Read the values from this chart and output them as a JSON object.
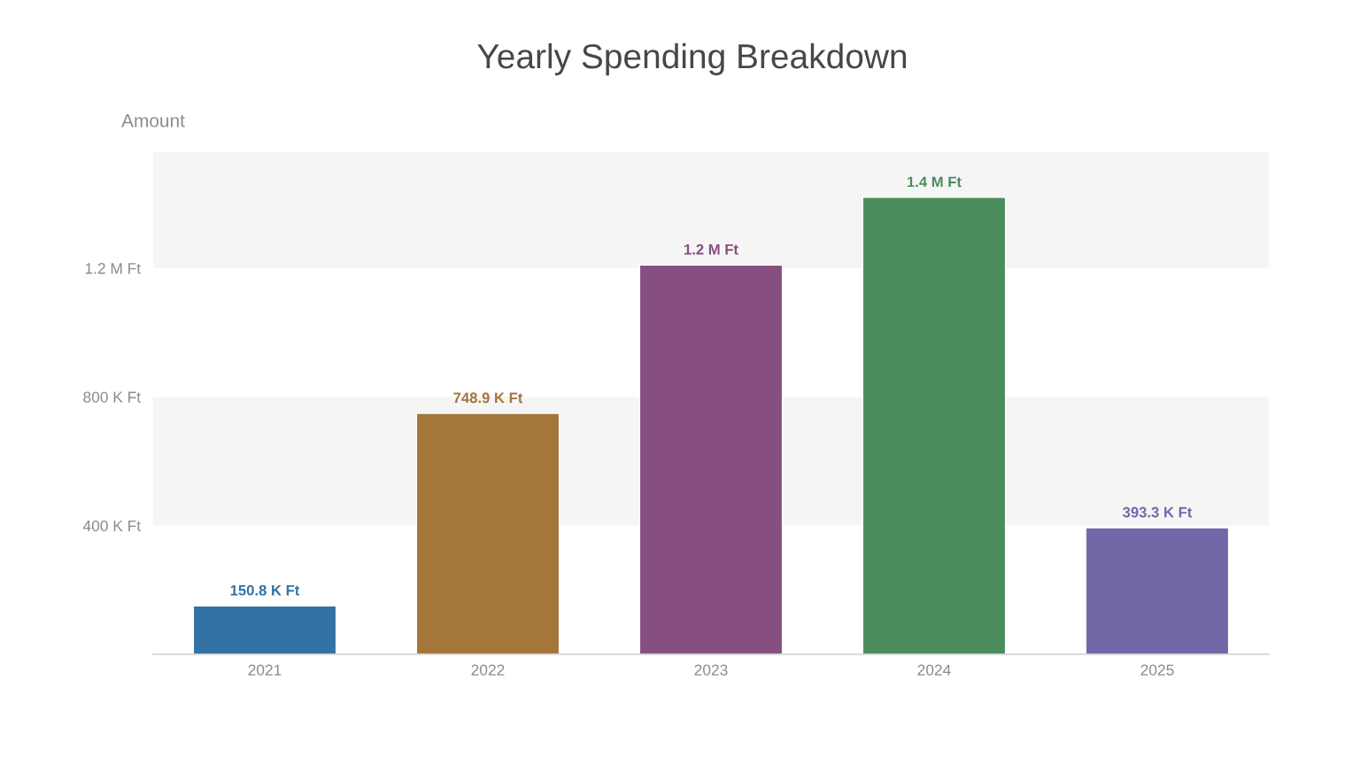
{
  "chart_data": {
    "type": "bar",
    "title": "Yearly Spending Breakdown",
    "ylabel": "Amount",
    "categories": [
      "2021",
      "2022",
      "2023",
      "2024",
      "2025"
    ],
    "values": [
      150800,
      748900,
      1210000,
      1420000,
      393300
    ],
    "colors": [
      "#3273a3",
      "#a57639",
      "#874f80",
      "#4a8c5c",
      "#7268a8"
    ],
    "value_labels": [
      "150.8 K Ft",
      "748.9 K Ft",
      "1.2 M Ft",
      "1.4 M Ft",
      "393.3 K Ft"
    ],
    "ylim": [
      0,
      1560000
    ],
    "yticks": [
      {
        "value": 400000,
        "label": "400 K Ft"
      },
      {
        "value": 800000,
        "label": "800 K Ft"
      },
      {
        "value": 1200000,
        "label": "1.2 M Ft"
      }
    ],
    "bands": [
      {
        "axis": "y",
        "from": 400000,
        "to": 800000,
        "color": "#f5f5f5"
      },
      {
        "axis": "y",
        "from": 1200000,
        "to": 1560000,
        "color": "#f5f5f5"
      }
    ]
  }
}
